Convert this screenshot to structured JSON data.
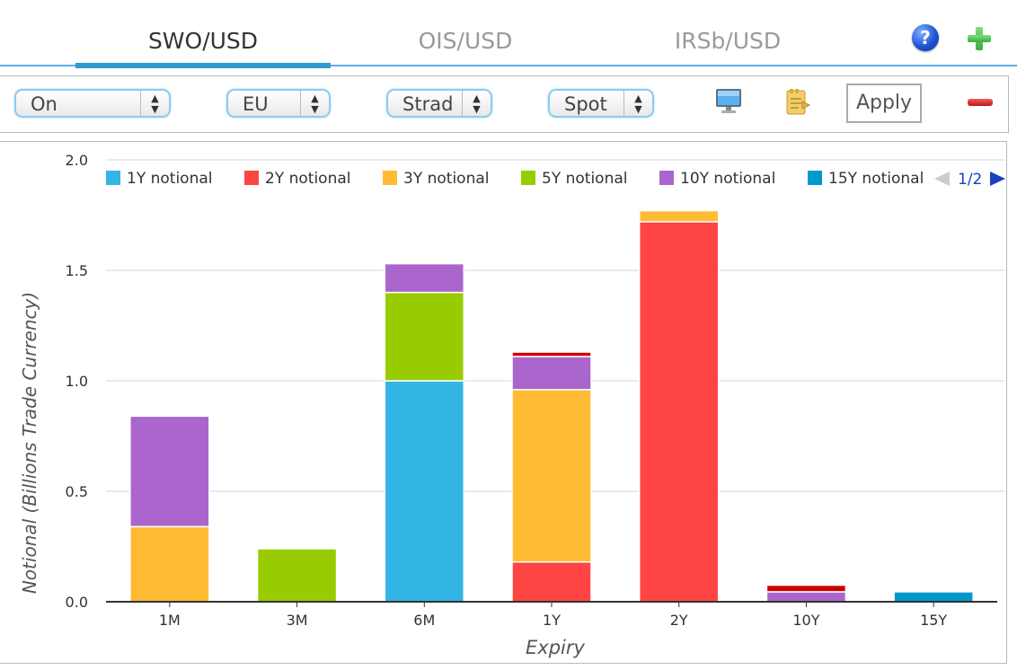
{
  "tabs": [
    {
      "label": "SWO/USD",
      "active": true
    },
    {
      "label": "OIS/USD",
      "active": false
    },
    {
      "label": "IRSb/USD",
      "active": false
    }
  ],
  "header_icons": {
    "help": "help-icon",
    "add": "plus-icon",
    "help_glyph": "?"
  },
  "toolbar": {
    "selects": [
      {
        "name": "on-select",
        "value": "On"
      },
      {
        "name": "region-select",
        "value": "EU"
      },
      {
        "name": "strategy-select",
        "value": "Strad"
      },
      {
        "name": "spot-select",
        "value": "Spot"
      }
    ],
    "icons": {
      "monitor": "monitor-icon",
      "notes": "notes-icon",
      "remove": "minus-icon"
    },
    "apply_label": "Apply",
    "select_arrows": "▲▼"
  },
  "chart_data": {
    "type": "bar",
    "stacked": true,
    "title": "",
    "xlabel": "Expiry",
    "ylabel": "Notional (Billions Trade Currency)",
    "ylim": [
      0,
      2.0
    ],
    "yticks": [
      "0.0",
      "0.5",
      "1.0",
      "1.5",
      "2.0"
    ],
    "ytick_values": [
      0,
      0.5,
      1.0,
      1.5,
      2.0
    ],
    "grid": true,
    "legend_position": "top",
    "legend_page": "1/2",
    "categories": [
      "1M",
      "3M",
      "6M",
      "1Y",
      "2Y",
      "10Y",
      "15Y"
    ],
    "series": [
      {
        "name": "1Y notional",
        "color": "#33b5e5",
        "values": [
          0,
          0,
          1.0,
          0,
          0,
          0,
          0
        ]
      },
      {
        "name": "2Y notional",
        "color": "#ff4444",
        "values": [
          0,
          0,
          0,
          0.18,
          1.72,
          0,
          0
        ]
      },
      {
        "name": "3Y notional",
        "color": "#ffbb33",
        "values": [
          0.34,
          0,
          0,
          0.78,
          0.05,
          0,
          0
        ]
      },
      {
        "name": "5Y notional",
        "color": "#99cc00",
        "values": [
          0,
          0.24,
          0.4,
          0,
          0,
          0,
          0
        ]
      },
      {
        "name": "10Y notional",
        "color": "#aa66cc",
        "values": [
          0.5,
          0,
          0.13,
          0.15,
          0,
          0.045,
          0
        ]
      },
      {
        "name": "15Y notional",
        "color": "#0099cc",
        "values": [
          0,
          0,
          0,
          0,
          0,
          0,
          0.045
        ]
      },
      {
        "name": "",
        "color": "#cc0000",
        "values": [
          0,
          0,
          0,
          0.02,
          0,
          0.03,
          0
        ]
      }
    ]
  }
}
